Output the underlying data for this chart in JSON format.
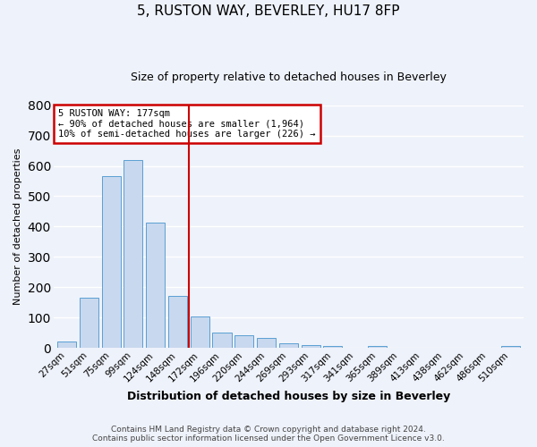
{
  "title_line1": "5, RUSTON WAY, BEVERLEY, HU17 8FP",
  "title_line2": "Size of property relative to detached houses in Beverley",
  "xlabel": "Distribution of detached houses by size in Beverley",
  "ylabel": "Number of detached properties",
  "bar_labels": [
    "27sqm",
    "51sqm",
    "75sqm",
    "99sqm",
    "124sqm",
    "148sqm",
    "172sqm",
    "196sqm",
    "220sqm",
    "244sqm",
    "269sqm",
    "293sqm",
    "317sqm",
    "341sqm",
    "365sqm",
    "389sqm",
    "413sqm",
    "438sqm",
    "462sqm",
    "486sqm",
    "510sqm"
  ],
  "bar_heights": [
    20,
    165,
    565,
    620,
    413,
    170,
    103,
    50,
    40,
    33,
    15,
    10,
    7,
    0,
    5,
    0,
    0,
    0,
    0,
    0,
    7
  ],
  "bar_color": "#c8d8ee",
  "bar_edge_color": "#5a9fd4",
  "vline_color": "#cc0000",
  "annotation_line1": "5 RUSTON WAY: 177sqm",
  "annotation_line2": "← 90% of detached houses are smaller (1,964)",
  "annotation_line3": "10% of semi-detached houses are larger (226) →",
  "annotation_box_color": "#cc0000",
  "ylim": [
    0,
    800
  ],
  "yticks": [
    0,
    100,
    200,
    300,
    400,
    500,
    600,
    700,
    800
  ],
  "footer_line1": "Contains HM Land Registry data © Crown copyright and database right 2024.",
  "footer_line2": "Contains public sector information licensed under the Open Government Licence v3.0.",
  "background_color": "#eef2fa",
  "grid_color": "#ffffff",
  "title_fontsize": 11,
  "subtitle_fontsize": 9,
  "xlabel_fontsize": 9,
  "ylabel_fontsize": 8,
  "tick_fontsize": 7.5,
  "footer_fontsize": 6.5
}
